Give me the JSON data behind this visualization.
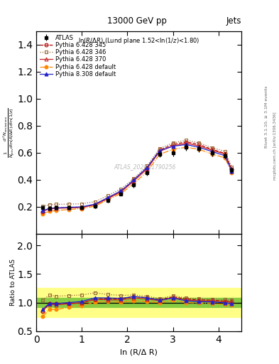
{
  "title": "13000 GeV pp",
  "title_right": "Jets",
  "xlabel": "ln (R/Δ R)",
  "plot_label": "ln(R/Δ R) (Lund plane 1.52<ln(1/z)<1.80)",
  "watermark": "ATLAS_2020_I1790256",
  "x": [
    0.14,
    0.29,
    0.43,
    0.71,
    1.0,
    1.29,
    1.57,
    1.86,
    2.14,
    2.43,
    2.71,
    3.0,
    3.29,
    3.57,
    3.86,
    4.14,
    4.29
  ],
  "atlas_y": [
    0.196,
    0.19,
    0.196,
    0.196,
    0.196,
    0.203,
    0.248,
    0.296,
    0.36,
    0.452,
    0.59,
    0.6,
    0.64,
    0.63,
    0.6,
    0.58,
    0.47
  ],
  "atlas_yerr": [
    0.015,
    0.012,
    0.012,
    0.012,
    0.012,
    0.012,
    0.015,
    0.015,
    0.018,
    0.02,
    0.025,
    0.025,
    0.025,
    0.025,
    0.025,
    0.025,
    0.025
  ],
  "py6_345_y": [
    0.165,
    0.188,
    0.193,
    0.193,
    0.195,
    0.215,
    0.265,
    0.315,
    0.398,
    0.49,
    0.62,
    0.66,
    0.68,
    0.66,
    0.625,
    0.595,
    0.478
  ],
  "py6_346_y": [
    0.205,
    0.215,
    0.218,
    0.22,
    0.222,
    0.238,
    0.283,
    0.333,
    0.408,
    0.502,
    0.632,
    0.672,
    0.692,
    0.672,
    0.638,
    0.61,
    0.492
  ],
  "py6_370_y": [
    0.168,
    0.185,
    0.188,
    0.192,
    0.195,
    0.215,
    0.26,
    0.31,
    0.39,
    0.48,
    0.61,
    0.65,
    0.67,
    0.65,
    0.618,
    0.59,
    0.475
  ],
  "py6_def_y": [
    0.148,
    0.168,
    0.172,
    0.18,
    0.186,
    0.205,
    0.252,
    0.298,
    0.372,
    0.46,
    0.588,
    0.625,
    0.64,
    0.625,
    0.59,
    0.562,
    0.452
  ],
  "py8_def_y": [
    0.172,
    0.188,
    0.192,
    0.196,
    0.2,
    0.22,
    0.268,
    0.318,
    0.398,
    0.49,
    0.615,
    0.648,
    0.66,
    0.64,
    0.608,
    0.578,
    0.462
  ],
  "ratio_py6_345": [
    0.842,
    0.989,
    0.985,
    0.985,
    0.995,
    1.059,
    1.069,
    1.064,
    1.106,
    1.084,
    1.051,
    1.1,
    1.063,
    1.048,
    1.042,
    1.026,
    1.017
  ],
  "ratio_py6_346": [
    1.046,
    1.132,
    1.112,
    1.122,
    1.133,
    1.172,
    1.141,
    1.125,
    1.133,
    1.11,
    1.071,
    1.12,
    1.081,
    1.067,
    1.063,
    1.052,
    1.047
  ],
  "ratio_py6_370": [
    0.857,
    0.974,
    0.959,
    0.98,
    0.995,
    1.059,
    1.048,
    1.047,
    1.083,
    1.062,
    1.034,
    1.083,
    1.047,
    1.032,
    1.03,
    1.017,
    1.011
  ],
  "ratio_py6_def": [
    0.755,
    0.884,
    0.878,
    0.918,
    0.949,
    1.01,
    1.016,
    1.007,
    1.033,
    1.018,
    0.997,
    1.042,
    1.0,
    0.992,
    0.983,
    0.969,
    0.962
  ],
  "ratio_py8_def": [
    0.878,
    0.989,
    0.98,
    1.0,
    1.02,
    1.084,
    1.081,
    1.074,
    1.106,
    1.084,
    1.042,
    1.08,
    1.031,
    1.016,
    1.013,
    0.997,
    0.983
  ],
  "green_lo": 0.92,
  "green_hi": 1.08,
  "yellow_lo": 0.75,
  "yellow_hi": 1.25,
  "color_atlas": "#000000",
  "color_py6_345": "#b30000",
  "color_py6_346": "#996633",
  "color_py6_370": "#cc2222",
  "color_py6_def": "#ff8800",
  "color_py8_def": "#2222cc",
  "ylim_main": [
    0.0,
    1.5
  ],
  "ylim_ratio": [
    0.5,
    2.2
  ],
  "xlim": [
    0.0,
    4.5
  ],
  "yticks_main": [
    0.2,
    0.4,
    0.6,
    0.8,
    1.0,
    1.2,
    1.4
  ],
  "yticks_ratio": [
    0.5,
    1.0,
    1.5,
    2.0
  ]
}
